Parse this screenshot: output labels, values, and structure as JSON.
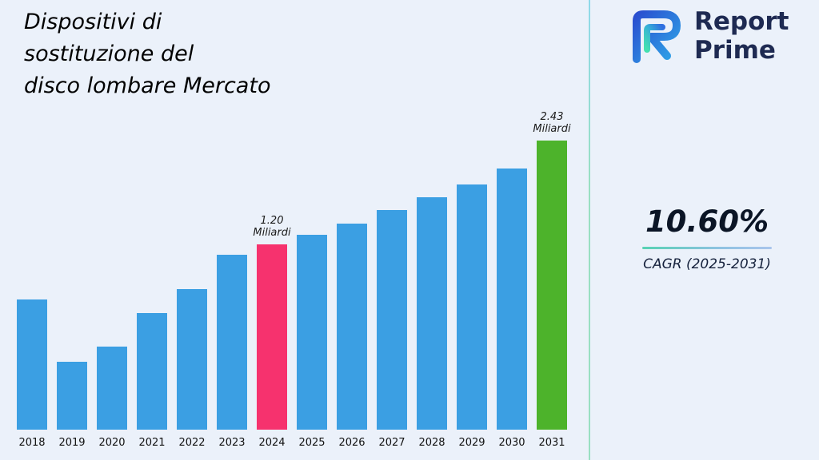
{
  "title": {
    "line1": "Dispositivi di",
    "line2": "sostituzione del",
    "line3": "disco lombare Mercato"
  },
  "branding": {
    "logo_icon": "report-prime-logo",
    "name_line1": "Report",
    "name_line2": "Prime"
  },
  "stats": {
    "cagr_value": "10.60%",
    "cagr_label": "CAGR (2025-2031)"
  },
  "colors": {
    "background": "#EBF1FA",
    "bar_blue": "#3B9FE3",
    "bar_pink": "#F6326E",
    "bar_green": "#4DB32B",
    "divider_teal": "#99DFC2",
    "brand_navy": "#1E2A52"
  },
  "chart_data": {
    "type": "bar",
    "title": "Dispositivi di sostituzione del disco lombare Mercato",
    "unit": "Miliardi",
    "xlabel": "",
    "ylabel": "",
    "ylim": [
      0,
      2.6
    ],
    "grid": false,
    "legend": "none",
    "categories": [
      "2018",
      "2019",
      "2020",
      "2021",
      "2022",
      "2023",
      "2024",
      "2025",
      "2026",
      "2027",
      "2028",
      "2029",
      "2030",
      "2031"
    ],
    "values_estimated_billions": [
      0.84,
      0.44,
      0.54,
      0.75,
      0.91,
      1.13,
      1.2,
      1.33,
      1.47,
      1.62,
      1.79,
      1.98,
      2.2,
      2.43
    ],
    "labeled_values": [
      {
        "year": "2024",
        "value": 1.2,
        "label_lines": [
          "1.20",
          "Miliardi"
        ]
      },
      {
        "year": "2031",
        "value": 2.43,
        "label_lines": [
          "2.43",
          "Miliardi"
        ]
      }
    ],
    "bars": [
      {
        "year": "2018",
        "h": 0.449,
        "color": "blue"
      },
      {
        "year": "2019",
        "h": 0.235,
        "color": "blue"
      },
      {
        "year": "2020",
        "h": 0.288,
        "color": "blue"
      },
      {
        "year": "2021",
        "h": 0.402,
        "color": "blue"
      },
      {
        "year": "2022",
        "h": 0.487,
        "color": "blue"
      },
      {
        "year": "2023",
        "h": 0.604,
        "color": "blue"
      },
      {
        "year": "2024",
        "h": 0.64,
        "color": "pink",
        "annotation": [
          "1.20",
          "Miliardi"
        ]
      },
      {
        "year": "2025",
        "h": 0.673,
        "color": "blue"
      },
      {
        "year": "2026",
        "h": 0.712,
        "color": "blue"
      },
      {
        "year": "2027",
        "h": 0.759,
        "color": "blue"
      },
      {
        "year": "2028",
        "h": 0.803,
        "color": "blue"
      },
      {
        "year": "2029",
        "h": 0.847,
        "color": "blue"
      },
      {
        "year": "2030",
        "h": 0.903,
        "color": "blue"
      },
      {
        "year": "2031",
        "h": 1.0,
        "color": "green",
        "annotation": [
          "2.43",
          "Miliardi"
        ]
      }
    ]
  }
}
